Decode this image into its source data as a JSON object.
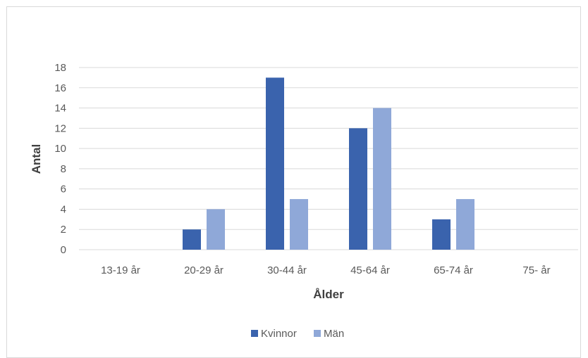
{
  "chart_data": {
    "type": "bar",
    "title": "",
    "xlabel": "Ålder",
    "ylabel": "Antal",
    "categories": [
      "13-19 år",
      "20-29 år",
      "30-44 år",
      "45-64 år",
      "65-74 år",
      "75- år"
    ],
    "series": [
      {
        "name": "Kvinnor",
        "values": [
          0,
          2,
          17,
          12,
          3,
          0
        ],
        "color": "#3a63ad"
      },
      {
        "name": "Män",
        "values": [
          0,
          4,
          5,
          14,
          5,
          0
        ],
        "color": "#8fa8d8"
      }
    ],
    "ylim": [
      0,
      18
    ],
    "yticks": [
      "0",
      "2",
      "4",
      "6",
      "8",
      "10",
      "12",
      "14",
      "16",
      "18"
    ],
    "grid": true,
    "legend_position": "bottom",
    "gridline_color": "#d9d9d9"
  }
}
